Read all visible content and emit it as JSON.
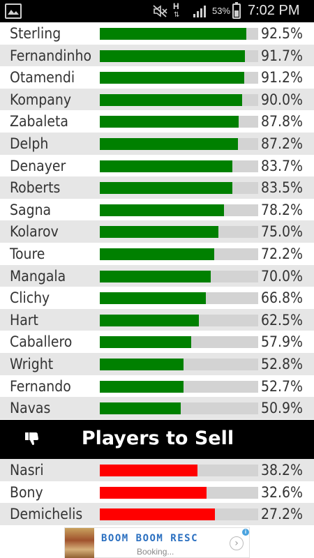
{
  "status_bar": {
    "network_type": "H",
    "battery_percent": "53%",
    "battery_level": 0.53,
    "time": "7:02 PM",
    "icons": [
      "gallery-icon",
      "mute-icon",
      "data-arrows-icon",
      "signal-icon",
      "battery-icon"
    ],
    "data_arrows": "⇅"
  },
  "colors": {
    "keep_bar": "#008000",
    "sell_bar": "#ff0000",
    "track": "#d3d3d3",
    "row_alt": "#e6e6e6"
  },
  "keep_players": [
    {
      "name": "Sterling",
      "percent": "92.5%",
      "value": 92.5
    },
    {
      "name": "Fernandinho",
      "percent": "91.7%",
      "value": 91.7
    },
    {
      "name": "Otamendi",
      "percent": "91.2%",
      "value": 91.2
    },
    {
      "name": "Kompany",
      "percent": "90.0%",
      "value": 90.0
    },
    {
      "name": "Zabaleta",
      "percent": "87.8%",
      "value": 87.8
    },
    {
      "name": "Delph",
      "percent": "87.2%",
      "value": 87.2
    },
    {
      "name": "Denayer",
      "percent": "83.7%",
      "value": 83.7
    },
    {
      "name": "Roberts",
      "percent": "83.5%",
      "value": 83.5
    },
    {
      "name": "Sagna",
      "percent": "78.2%",
      "value": 78.2
    },
    {
      "name": "Kolarov",
      "percent": "75.0%",
      "value": 75.0
    },
    {
      "name": "Toure",
      "percent": "72.2%",
      "value": 72.2
    },
    {
      "name": "Mangala",
      "percent": "70.0%",
      "value": 70.0
    },
    {
      "name": "Clichy",
      "percent": "66.8%",
      "value": 66.8
    },
    {
      "name": "Hart",
      "percent": "62.5%",
      "value": 62.5
    },
    {
      "name": "Caballero",
      "percent": "57.9%",
      "value": 57.9
    },
    {
      "name": "Wright",
      "percent": "52.8%",
      "value": 52.8
    },
    {
      "name": "Fernando",
      "percent": "52.7%",
      "value": 52.7
    },
    {
      "name": "Navas",
      "percent": "50.9%",
      "value": 50.9
    }
  ],
  "sell_section": {
    "title": "Players to Sell",
    "icon": "thumbs-down-icon"
  },
  "sell_players": [
    {
      "name": "Nasri",
      "percent": "38.2%",
      "value": 61.8
    },
    {
      "name": "Bony",
      "percent": "32.6%",
      "value": 67.4
    },
    {
      "name": "Demichelis",
      "percent": "27.2%",
      "value": 72.8
    }
  ],
  "ad": {
    "title": "BOOM BOOM RESC",
    "subtitle": "Booking...",
    "info": "i",
    "arrow": "›"
  }
}
